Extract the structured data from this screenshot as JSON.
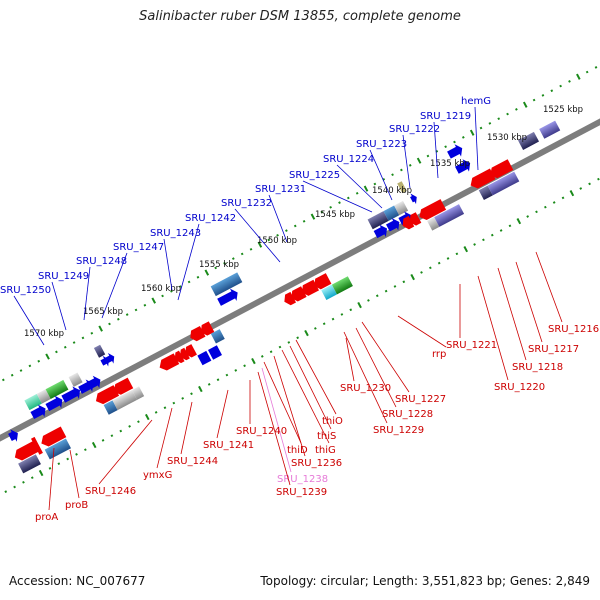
{
  "title": "Salinibacter ruber DSM 13855, complete genome",
  "accession": "Accession: NC_007677",
  "summary": "Topology: circular; Length: 3,551,823 bp; Genes: 2,849",
  "colors": {
    "forward_gene": "#0000dd",
    "reverse_gene": "#ee0000",
    "backbone": "#808080",
    "tick": "#1a8a1a",
    "label_blue": "#0000cc",
    "label_red": "#cc0000",
    "label_pink": "#e67ad8"
  },
  "scale_labels": [
    "1525 kbp",
    "1530 kbp",
    "1535 kbp",
    "1540 kbp",
    "1545 kbp",
    "1550 kbp",
    "1555 kbp",
    "1560 kbp",
    "1565 kbp",
    "1570 kbp"
  ],
  "forward_labels": [
    "hemG",
    "SRU_1219",
    "SRU_1222",
    "SRU_1223",
    "SRU_1224",
    "SRU_1225",
    "SRU_1231",
    "SRU_1232",
    "SRU_1242",
    "SRU_1243",
    "SRU_1247",
    "SRU_1248",
    "SRU_1249",
    "SRU_1250"
  ],
  "reverse_labels": [
    "SRU_1216",
    "SRU_1217",
    "SRU_1218",
    "SRU_1220",
    "SRU_1221",
    "rrp",
    "SRU_1227",
    "SRU_1228",
    "SRU_1229",
    "SRU_1230",
    "thiO",
    "thiS",
    "thiG",
    "SRU_1236",
    "thiD",
    "SRU_1238",
    "SRU_1239",
    "SRU_1240",
    "SRU_1241",
    "SRU_1244",
    "ymxG",
    "SRU_1246",
    "proB",
    "proA"
  ]
}
